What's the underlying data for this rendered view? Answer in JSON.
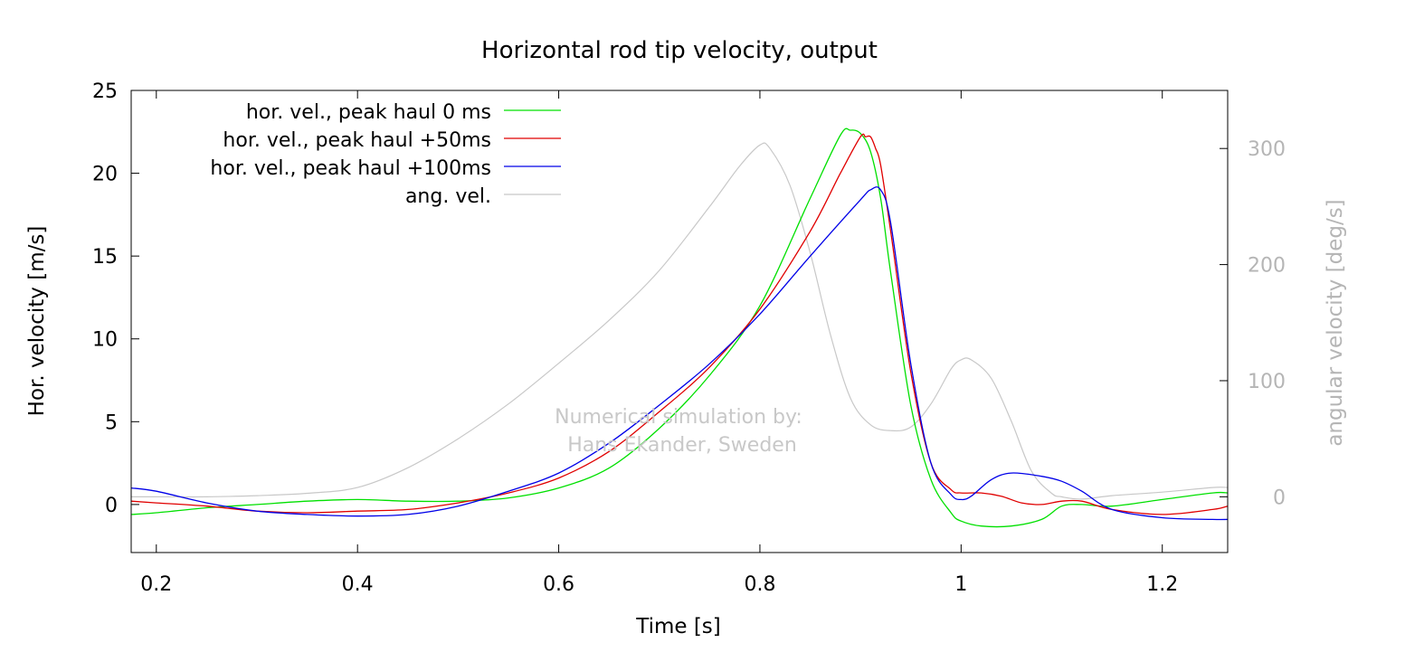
{
  "chart_data": {
    "type": "line",
    "title": "Horizontal rod tip velocity, output",
    "xlabel": "Time [s]",
    "ylabel": "Hor. velocity [m/s]",
    "y2label": "angular velocity [deg/s]",
    "xlim": [
      0.175,
      1.265
    ],
    "ylim": [
      -2.9,
      25
    ],
    "y2lim": [
      -48,
      350
    ],
    "xticks": [
      0.2,
      0.4,
      0.6,
      0.8,
      1.0,
      1.2
    ],
    "xtick_labels": [
      "0.2",
      "0.4",
      "0.6",
      "0.8",
      "1",
      "1.2"
    ],
    "yticks": [
      0,
      5,
      10,
      15,
      20,
      25
    ],
    "ytick_labels": [
      "0",
      "5",
      "10",
      "15",
      "20",
      "25"
    ],
    "y2ticks": [
      0,
      100,
      200,
      300
    ],
    "y2tick_labels": [
      "0",
      "100",
      "200",
      "300"
    ],
    "grid": false,
    "legend_position": "top-left",
    "annotation": [
      "Numerical simulation by:",
      "Hans Ekander, Sweden"
    ],
    "series": [
      {
        "name": "hor. vel., peak haul 0 ms",
        "color": "#00e000",
        "axis": "left",
        "x": [
          0.175,
          0.2,
          0.25,
          0.3,
          0.35,
          0.4,
          0.45,
          0.5,
          0.55,
          0.6,
          0.65,
          0.7,
          0.75,
          0.8,
          0.85,
          0.88,
          0.89,
          0.9,
          0.91,
          0.92,
          0.93,
          0.95,
          0.97,
          0.99,
          1.0,
          1.02,
          1.05,
          1.08,
          1.1,
          1.12,
          1.15,
          1.2,
          1.25,
          1.265
        ],
        "y": [
          -0.6,
          -0.5,
          -0.2,
          0.0,
          0.2,
          0.3,
          0.2,
          0.2,
          0.4,
          1.0,
          2.2,
          4.6,
          7.8,
          12.0,
          18.5,
          22.3,
          22.6,
          22.4,
          21.3,
          18.5,
          14.0,
          6.0,
          1.5,
          -0.5,
          -1.0,
          -1.3,
          -1.3,
          -0.9,
          -0.1,
          0.0,
          -0.1,
          0.3,
          0.7,
          0.7
        ]
      },
      {
        "name": "hor. vel., peak haul +50ms",
        "color": "#e00000",
        "axis": "left",
        "x": [
          0.175,
          0.2,
          0.25,
          0.3,
          0.35,
          0.4,
          0.45,
          0.5,
          0.55,
          0.6,
          0.65,
          0.7,
          0.75,
          0.8,
          0.85,
          0.88,
          0.9,
          0.905,
          0.91,
          0.915,
          0.92,
          0.93,
          0.95,
          0.97,
          0.99,
          1.0,
          1.02,
          1.04,
          1.06,
          1.08,
          1.1,
          1.12,
          1.15,
          1.2,
          1.25,
          1.265
        ],
        "y": [
          0.2,
          0.1,
          -0.1,
          -0.4,
          -0.5,
          -0.4,
          -0.3,
          0.1,
          0.7,
          1.6,
          3.2,
          5.6,
          8.3,
          11.8,
          16.5,
          20.0,
          22.2,
          22.2,
          22.2,
          21.5,
          20.5,
          16.5,
          8.0,
          2.5,
          0.9,
          0.7,
          0.7,
          0.5,
          0.1,
          0.0,
          0.2,
          0.2,
          -0.3,
          -0.6,
          -0.3,
          -0.1
        ]
      },
      {
        "name": "hor. vel., peak haul +100ms",
        "color": "#0000e8",
        "axis": "left",
        "x": [
          0.175,
          0.2,
          0.25,
          0.3,
          0.35,
          0.4,
          0.45,
          0.5,
          0.55,
          0.6,
          0.65,
          0.7,
          0.75,
          0.8,
          0.85,
          0.9,
          0.91,
          0.92,
          0.93,
          0.95,
          0.97,
          0.99,
          1.0,
          1.01,
          1.03,
          1.05,
          1.08,
          1.1,
          1.12,
          1.15,
          1.2,
          1.25,
          1.265
        ],
        "y": [
          1.0,
          0.8,
          0.1,
          -0.4,
          -0.6,
          -0.7,
          -0.6,
          -0.1,
          0.8,
          1.9,
          3.7,
          6.0,
          8.5,
          11.5,
          15.0,
          18.4,
          19.0,
          19.0,
          17.0,
          8.5,
          2.5,
          0.6,
          0.3,
          0.5,
          1.5,
          1.9,
          1.7,
          1.4,
          0.8,
          -0.3,
          -0.8,
          -0.9,
          -0.9
        ]
      },
      {
        "name": "ang. vel.",
        "color": "#c8c8c8",
        "axis": "right",
        "x": [
          0.175,
          0.2,
          0.25,
          0.3,
          0.35,
          0.4,
          0.45,
          0.5,
          0.55,
          0.6,
          0.65,
          0.7,
          0.75,
          0.78,
          0.8,
          0.81,
          0.83,
          0.85,
          0.87,
          0.89,
          0.91,
          0.93,
          0.95,
          0.97,
          0.99,
          1.0,
          1.01,
          1.03,
          1.05,
          1.07,
          1.09,
          1.1,
          1.12,
          1.15,
          1.2,
          1.25,
          1.265
        ],
        "y": [
          0,
          0,
          0,
          1,
          3,
          8,
          25,
          50,
          80,
          115,
          152,
          195,
          250,
          285,
          303,
          300,
          268,
          210,
          140,
          85,
          62,
          57,
          60,
          80,
          110,
          118,
          118,
          102,
          65,
          22,
          3,
          0,
          -2,
          1,
          4,
          8,
          8
        ]
      }
    ]
  }
}
